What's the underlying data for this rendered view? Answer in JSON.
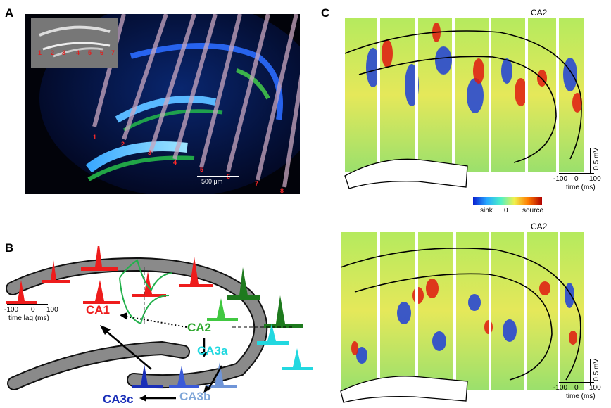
{
  "panels": {
    "A": {
      "letter": "A",
      "inset_labels": [
        "1",
        "2",
        "3",
        "4",
        "5",
        "6",
        "7"
      ],
      "probe_labels": [
        "1",
        "2",
        "3",
        "4",
        "5",
        "6",
        "7",
        "8"
      ],
      "scale_bar": "500 μm"
    },
    "B": {
      "letter": "B",
      "axis_ticks": [
        "-100",
        "0",
        "100"
      ],
      "axis_label": "time lag (ms)",
      "regions": {
        "CA1": "CA1",
        "CA2": "CA2",
        "CA3a": "CA3a",
        "CA3b": "CA3b",
        "CA3c": "CA3c"
      },
      "colors": {
        "CA1": "#ee1c1c",
        "CA2": "#2fa82f",
        "CA3a": "#22d8e0",
        "CA3b": "#7fa6d8",
        "CA3c": "#1a2fb8"
      }
    },
    "C": {
      "letter": "C",
      "top_title": "CA2",
      "bottom_title": "CA2",
      "colorbar": {
        "left": "sink",
        "middle": "0",
        "right": "source"
      },
      "voltage_scale": "0.5 mV",
      "time_ticks": [
        "-100",
        "0",
        "100"
      ],
      "time_label": "time (ms)"
    }
  }
}
